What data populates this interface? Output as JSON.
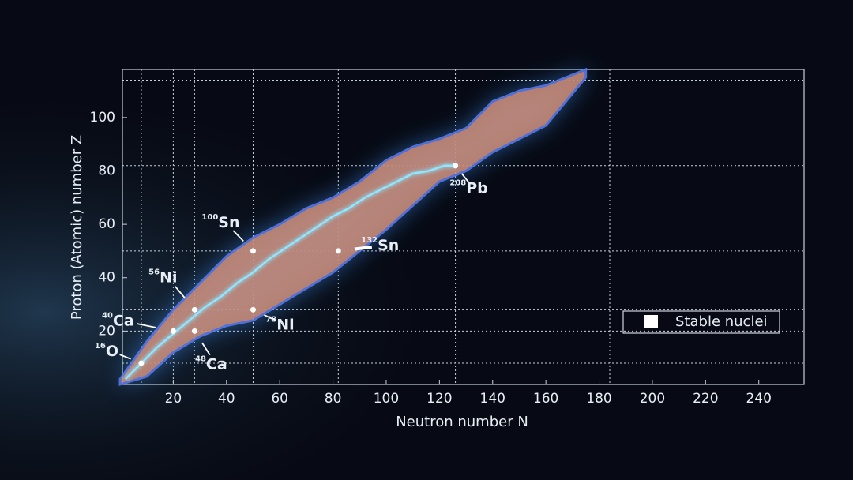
{
  "chart_data": {
    "type": "nuclide-chart",
    "xlabel": "Neutron number N",
    "ylabel": "Proton (Atomic) number Z",
    "xlim": [
      0,
      257
    ],
    "ylim": [
      0,
      118
    ],
    "xticks": [
      20,
      40,
      60,
      80,
      100,
      120,
      140,
      160,
      180,
      200,
      220,
      240
    ],
    "yticks": [
      20,
      40,
      60,
      80,
      100
    ],
    "vlines": [
      8,
      20,
      28,
      50,
      82,
      126,
      184
    ],
    "hlines": [
      8,
      20,
      28,
      50,
      82,
      114
    ],
    "band": {
      "color": "#d08e78",
      "edge_color": "#5b7cf0",
      "n": [
        0,
        10,
        20,
        30,
        40,
        50,
        60,
        70,
        80,
        90,
        100,
        110,
        120,
        130,
        140,
        150,
        160,
        175
      ],
      "z_max": [
        2,
        16,
        28,
        38,
        48,
        55,
        60,
        66,
        70,
        76,
        84,
        89,
        92,
        96,
        106,
        110,
        112,
        118
      ],
      "z_min": [
        0,
        3,
        12,
        18,
        22,
        24,
        30,
        36,
        42,
        50,
        58,
        67,
        76,
        80,
        87,
        92,
        97,
        115
      ]
    },
    "series": [
      {
        "name": "Stable nuclei",
        "color": "#8fe6ff",
        "x": [
          2,
          8,
          14,
          20,
          26,
          32,
          38,
          44,
          50,
          56,
          62,
          68,
          74,
          80,
          86,
          92,
          98,
          104,
          110,
          116,
          122,
          126
        ],
        "values": [
          2,
          8,
          14,
          19,
          24,
          29,
          33,
          38,
          42,
          47,
          51,
          55,
          59,
          63,
          66,
          70,
          73,
          76,
          79,
          80,
          82,
          82
        ]
      }
    ],
    "legend": "lower right",
    "annotations": [
      {
        "mass": "16",
        "symbol": "O",
        "n": 8,
        "z": 8
      },
      {
        "mass": "40",
        "symbol": "Ca",
        "n": 20,
        "z": 20
      },
      {
        "mass": "48",
        "symbol": "Ca",
        "n": 28,
        "z": 20
      },
      {
        "mass": "56",
        "symbol": "Ni",
        "n": 28,
        "z": 28
      },
      {
        "mass": "78",
        "symbol": "Ni",
        "n": 50,
        "z": 28
      },
      {
        "mass": "100",
        "symbol": "Sn",
        "n": 50,
        "z": 50
      },
      {
        "mass": "132",
        "symbol": "Sn",
        "n": 82,
        "z": 50
      },
      {
        "mass": "208",
        "symbol": "Pb",
        "n": 126,
        "z": 82
      }
    ]
  }
}
